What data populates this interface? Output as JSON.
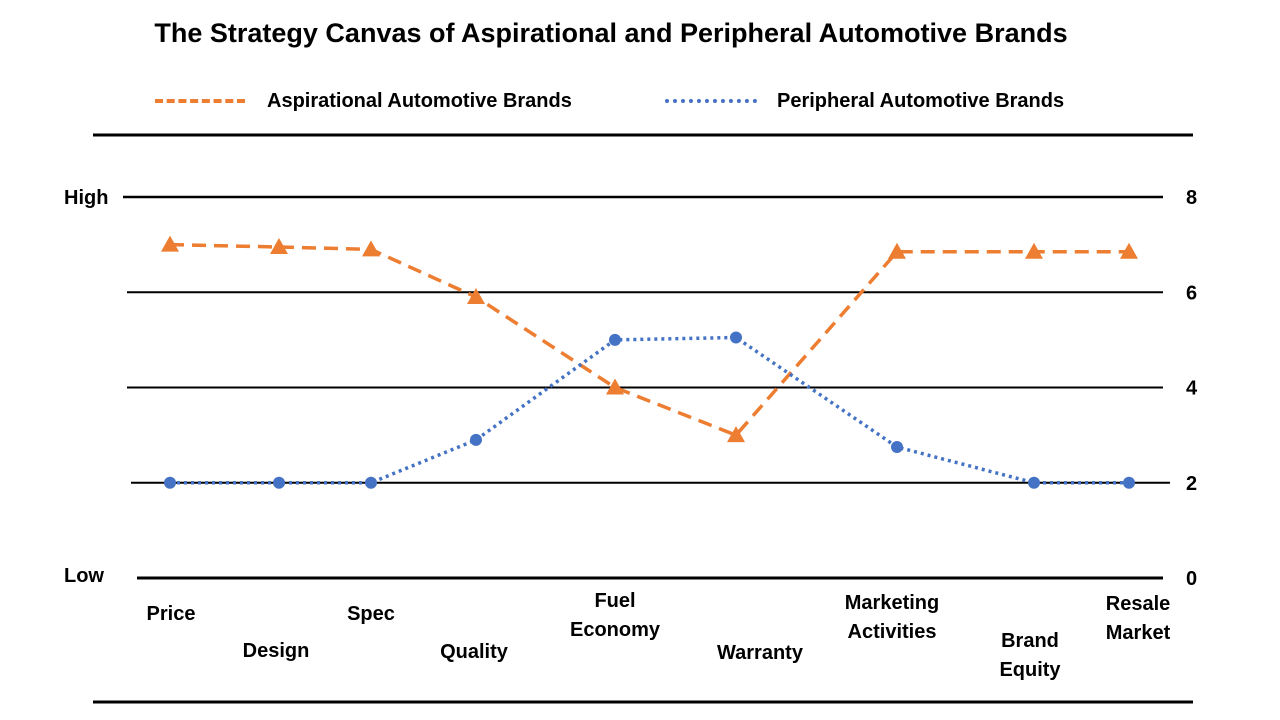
{
  "chart_data": {
    "type": "line",
    "title": "The Strategy Canvas of Aspirational and Peripheral Automotive Brands",
    "categories": [
      "Price",
      "Design",
      "Spec",
      "Quality",
      "Fuel Economy",
      "Warranty",
      "Marketing Activities",
      "Brand Equity",
      "Resale Market"
    ],
    "series": [
      {
        "name": "Aspirational Automotive Brands",
        "color": "#ED7D31",
        "line_style": "dashed",
        "marker": "triangle",
        "values": [
          7.0,
          6.95,
          6.9,
          5.9,
          4.0,
          3.0,
          6.85,
          6.85,
          6.85
        ]
      },
      {
        "name": "Peripheral Automotive Brands",
        "color": "#4472C4",
        "line_style": "dotted",
        "marker": "circle",
        "values": [
          2.0,
          2.0,
          2.0,
          2.9,
          5.0,
          5.05,
          2.75,
          2.0,
          2.0
        ]
      }
    ],
    "ylim": [
      0,
      8
    ],
    "yticks": [
      "0",
      "2",
      "4",
      "6",
      "8"
    ],
    "y_side_labels": {
      "low": "Low",
      "high": "High"
    },
    "grid": true,
    "legend_position": "top"
  }
}
